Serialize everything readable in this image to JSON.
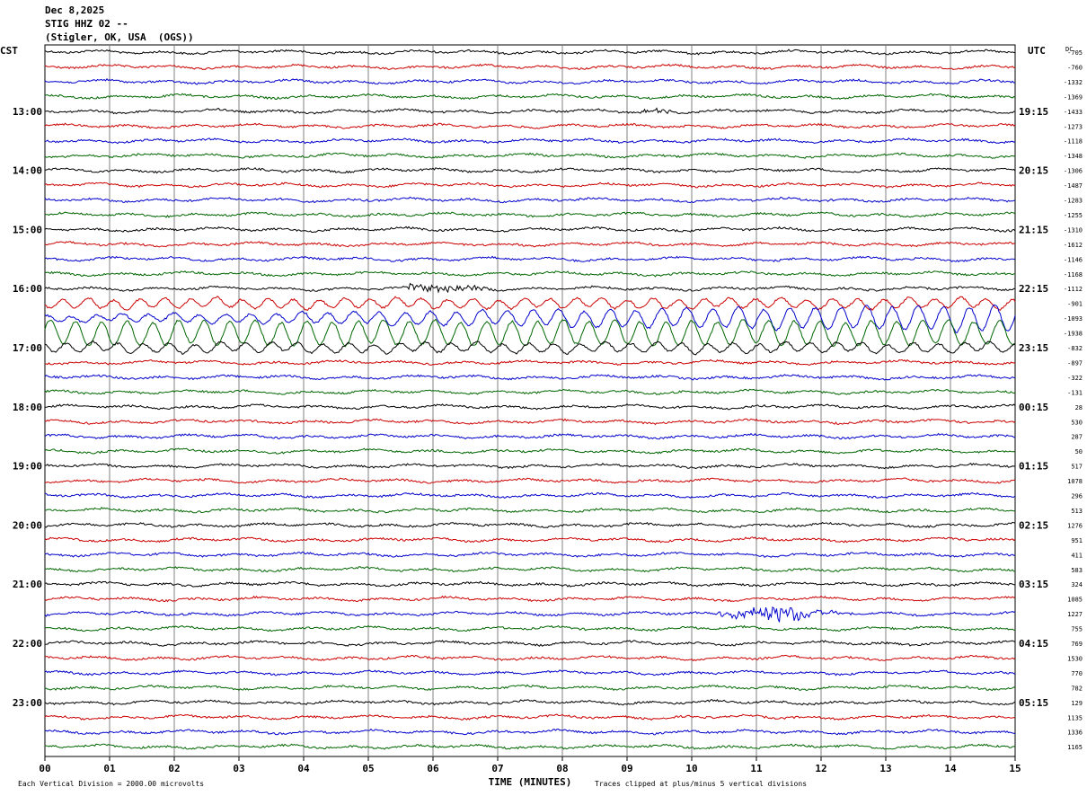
{
  "header": {
    "date": "Dec 8,2025",
    "station": "STIG HHZ 02 --",
    "location": "(Stigler, OK, USA  (OGS))"
  },
  "axes": {
    "left_tz": "CST",
    "right_tz": "UTC",
    "dc_label": "DC",
    "xlabel": "TIME (MINUTES)",
    "scale_note": "Each Vertical Division = 2000.00 microvolts",
    "clip_note": "Traces clipped at plus/minus 5 vertical divisions"
  },
  "colors": {
    "trace_cycle": [
      "#000000",
      "#cc0000",
      "#0000cc",
      "#006600"
    ],
    "grid": "#808080"
  },
  "chart_data": {
    "type": "helicorder",
    "xlim": [
      0,
      15
    ],
    "x_ticks": [
      "00",
      "01",
      "02",
      "03",
      "04",
      "05",
      "06",
      "07",
      "08",
      "09",
      "10",
      "11",
      "12",
      "13",
      "14",
      "15"
    ],
    "left_hour_labels": [
      "13:00",
      "14:00",
      "15:00",
      "16:00",
      "17:00",
      "18:00",
      "19:00",
      "20:00",
      "21:00",
      "22:00",
      "23:00"
    ],
    "right_hour_labels": [
      "19:15",
      "20:15",
      "21:15",
      "22:15",
      "23:15",
      "00:15",
      "01:15",
      "02:15",
      "03:15",
      "04:15",
      "05:15"
    ],
    "dc_offsets": [
      "-705",
      "-760",
      "-1332",
      "-1369",
      "-1433",
      "-1273",
      "-1118",
      "-1348",
      "-1306",
      "-1487",
      "-1283",
      "-1255",
      "-1310",
      "-1612",
      "-1146",
      "-1168",
      "-1112",
      "-901",
      "-1093",
      "-1938",
      "-832",
      "-897",
      "-322",
      "-131",
      "28",
      "530",
      "287",
      "50",
      "517",
      "1078",
      "296",
      "513",
      "1276",
      "951",
      "411",
      "583",
      "324",
      "1085",
      "1227",
      "755",
      "769",
      "1530",
      "770",
      "782",
      "129",
      "1135",
      "1336",
      "1165"
    ],
    "events": [
      {
        "row": 4,
        "start_min": 9.2,
        "end_min": 9.7,
        "amplitude": 0.6
      },
      {
        "row": 16,
        "start_min": 5.6,
        "end_min": 6.9,
        "amplitude": 0.9
      },
      {
        "row": 38,
        "start_min": 10.4,
        "end_min": 12.8,
        "amplitude": 2.5,
        "peak_min": 11.45
      }
    ],
    "microseism_rows": [
      17,
      18,
      19,
      20
    ]
  }
}
